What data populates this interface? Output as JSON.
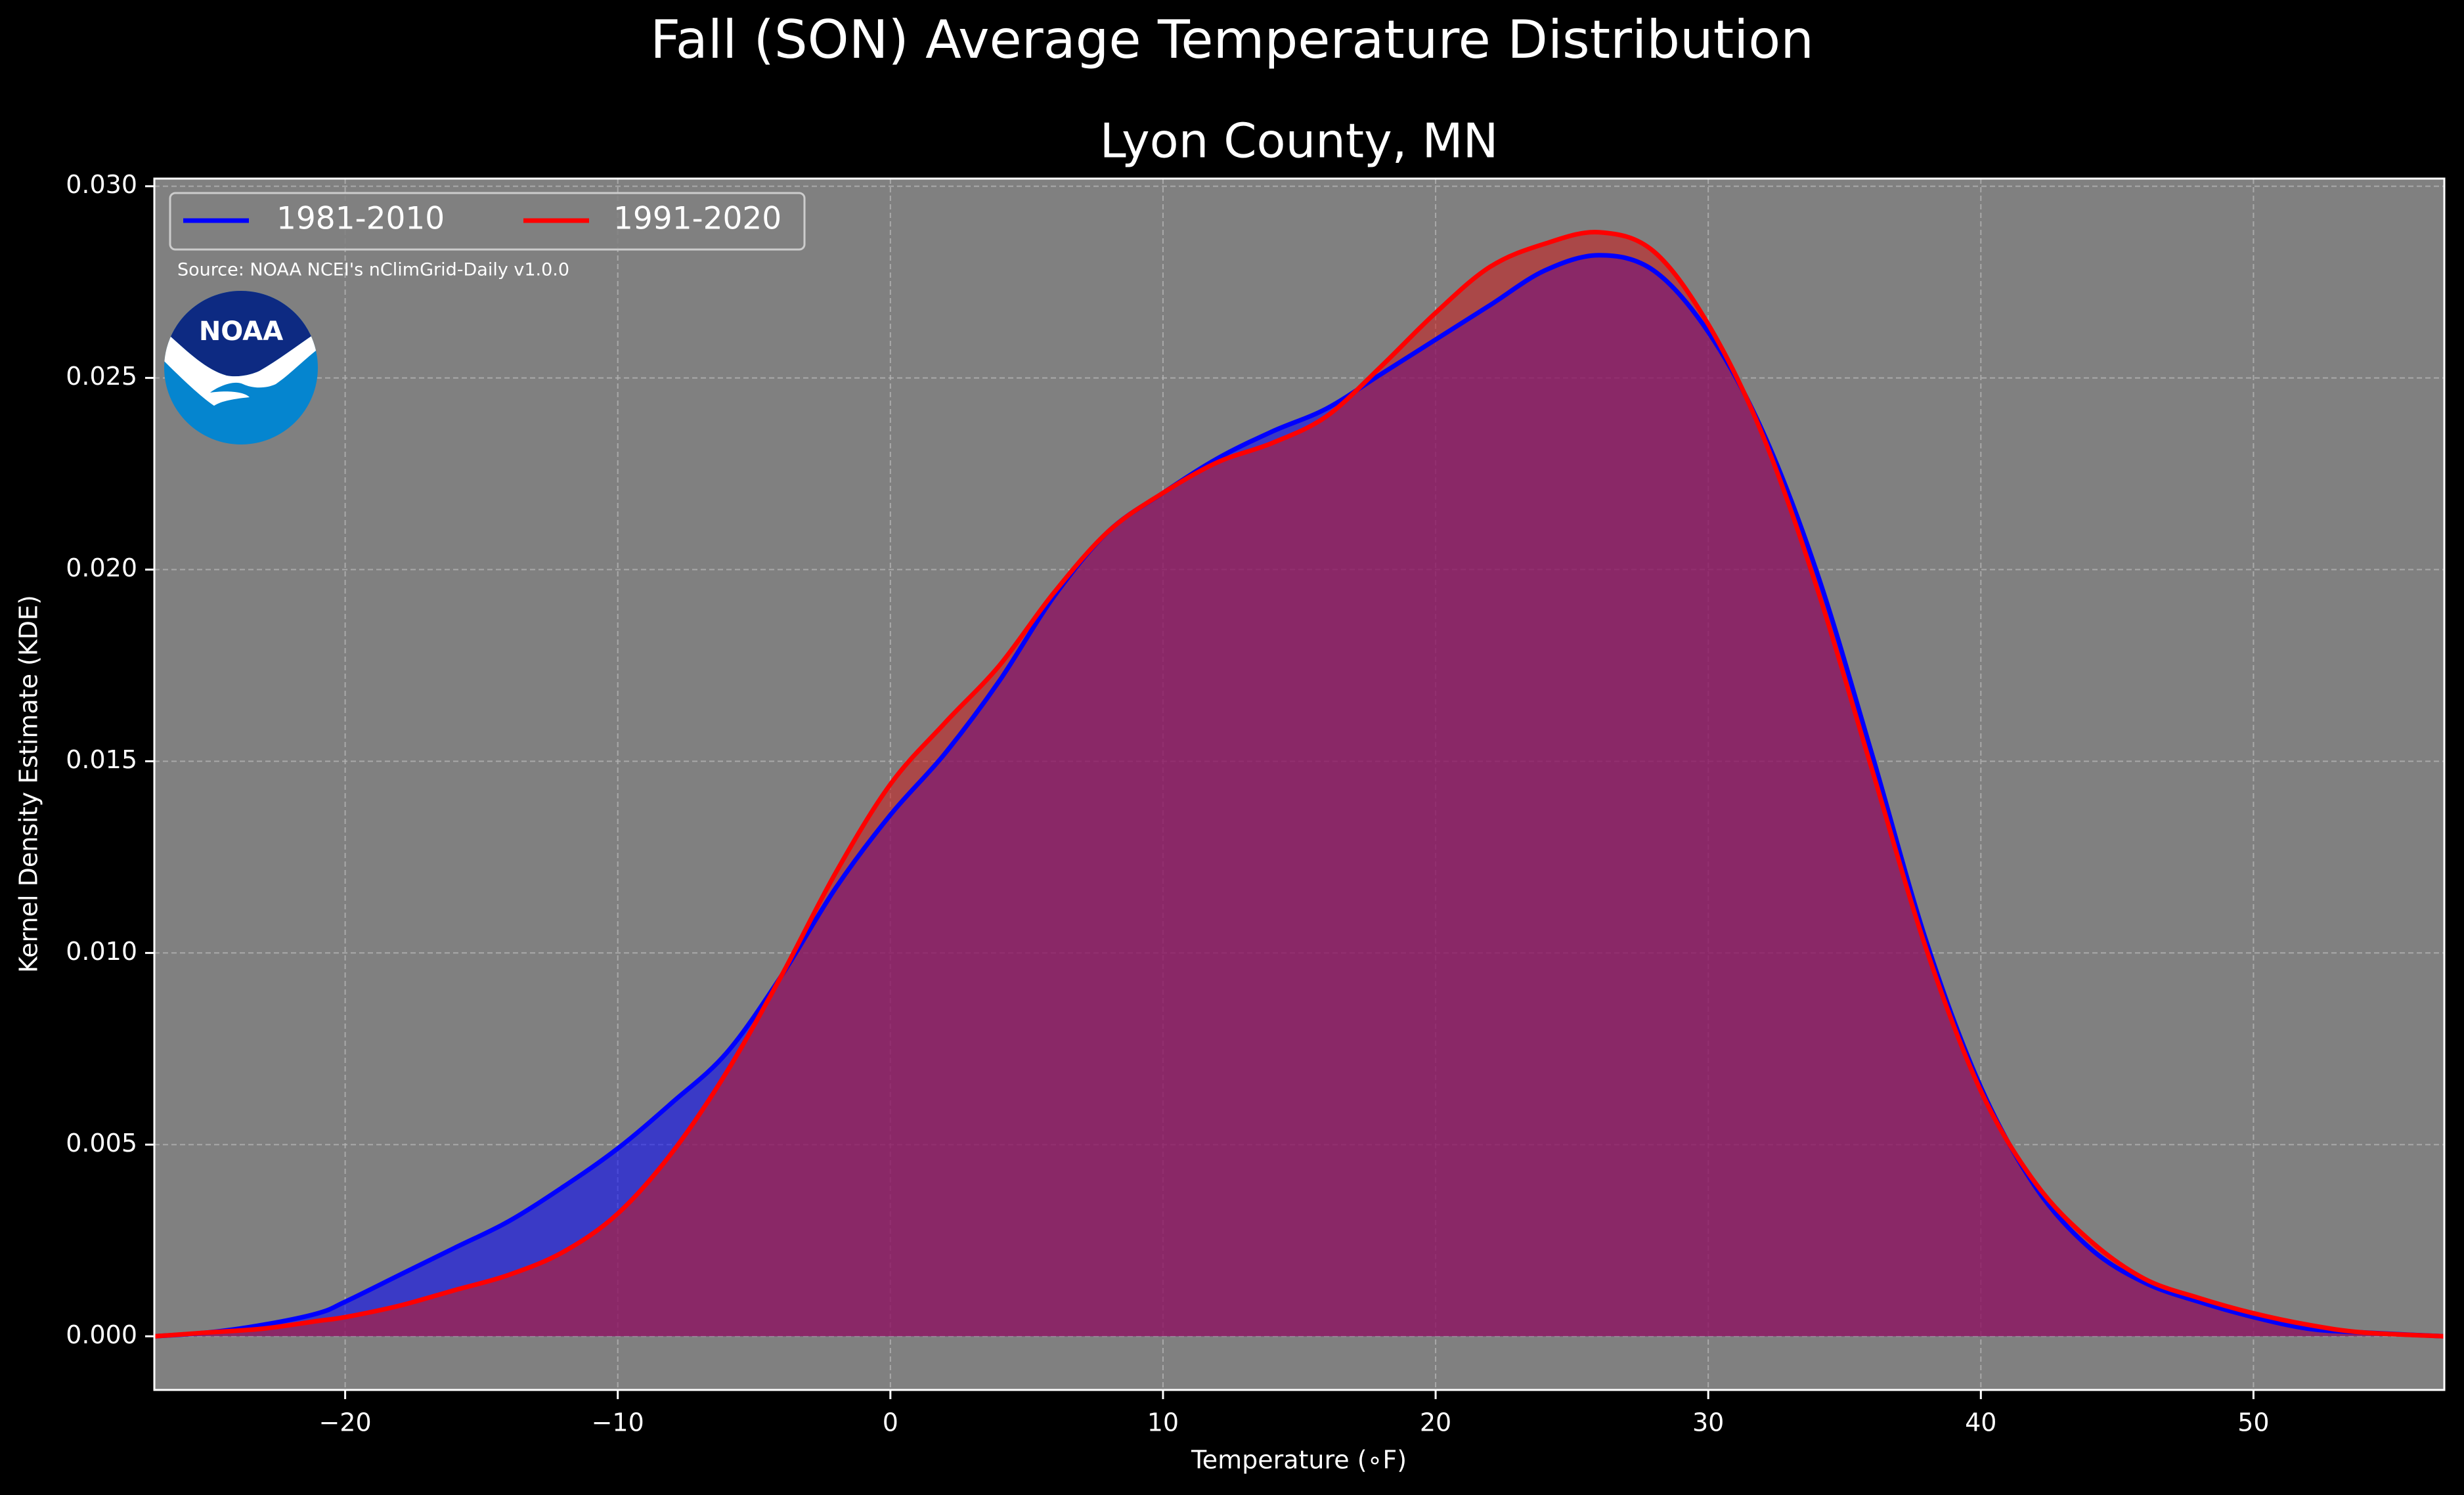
{
  "chart_data": {
    "type": "area",
    "suptitle": "Fall (SON) Average Temperature Distribution",
    "title": "Lyon County, MN",
    "xlabel": "Temperature (∘F)",
    "ylabel": "Kernel Density Estimate (KDE)",
    "xlim": [
      -27,
      57
    ],
    "ylim": [
      -0.0014,
      0.0302
    ],
    "xticks": [
      -20,
      -10,
      0,
      10,
      20,
      30,
      40,
      50
    ],
    "xtick_labels": [
      "−20",
      "−10",
      "0",
      "10",
      "20",
      "30",
      "40",
      "50"
    ],
    "yticks": [
      0,
      0.005,
      0.01,
      0.015,
      0.02,
      0.025,
      0.03
    ],
    "ytick_labels": [
      "0.000",
      "0.005",
      "0.010",
      "0.015",
      "0.020",
      "0.025",
      "0.030"
    ],
    "grid": true,
    "legend_position": "top-left",
    "source": "Source: NOAA NCEI's nClimGrid-Daily v1.0.0",
    "logo_text": "NOAA",
    "series": [
      {
        "name": "1981-2010",
        "color": "#0000ff",
        "fill": "#0000ff",
        "points": [
          [
            -27,
            0.0
          ],
          [
            -25,
            0.0001
          ],
          [
            -23,
            0.0003
          ],
          [
            -21,
            0.0006
          ],
          [
            -20,
            0.0009
          ],
          [
            -18,
            0.0016
          ],
          [
            -16,
            0.0023
          ],
          [
            -14,
            0.003
          ],
          [
            -12,
            0.0039
          ],
          [
            -10,
            0.0049
          ],
          [
            -8,
            0.0061
          ],
          [
            -6,
            0.0074
          ],
          [
            -4,
            0.0094
          ],
          [
            -2,
            0.0117
          ],
          [
            0,
            0.0136
          ],
          [
            2,
            0.0152
          ],
          [
            4,
            0.0171
          ],
          [
            6,
            0.0193
          ],
          [
            8,
            0.021
          ],
          [
            10,
            0.022
          ],
          [
            12,
            0.0229
          ],
          [
            14,
            0.0236
          ],
          [
            16,
            0.0242
          ],
          [
            18,
            0.0251
          ],
          [
            20,
            0.026
          ],
          [
            22,
            0.0269
          ],
          [
            24,
            0.0278
          ],
          [
            26,
            0.0282
          ],
          [
            28,
            0.0278
          ],
          [
            30,
            0.0262
          ],
          [
            32,
            0.0236
          ],
          [
            34,
            0.0199
          ],
          [
            36,
            0.0152
          ],
          [
            38,
            0.0103
          ],
          [
            40,
            0.0065
          ],
          [
            42,
            0.0039
          ],
          [
            44,
            0.0023
          ],
          [
            46,
            0.0014
          ],
          [
            48,
            0.0009
          ],
          [
            50,
            0.0005
          ],
          [
            52,
            0.0002
          ],
          [
            54,
            0.0001
          ],
          [
            57,
            0.0
          ]
        ]
      },
      {
        "name": "1991-2020",
        "color": "#ff0000",
        "fill": "#cc1a1a",
        "points": [
          [
            -27,
            0.0
          ],
          [
            -25,
            0.0001
          ],
          [
            -23,
            0.0002
          ],
          [
            -21,
            0.0004
          ],
          [
            -20,
            0.0005
          ],
          [
            -18,
            0.0008
          ],
          [
            -16,
            0.0012
          ],
          [
            -14,
            0.0016
          ],
          [
            -12,
            0.0022
          ],
          [
            -10,
            0.0032
          ],
          [
            -8,
            0.0048
          ],
          [
            -6,
            0.0069
          ],
          [
            -4,
            0.0094
          ],
          [
            -2,
            0.0121
          ],
          [
            0,
            0.0144
          ],
          [
            2,
            0.016
          ],
          [
            4,
            0.0175
          ],
          [
            6,
            0.0194
          ],
          [
            8,
            0.021
          ],
          [
            10,
            0.022
          ],
          [
            12,
            0.0228
          ],
          [
            14,
            0.0233
          ],
          [
            16,
            0.024
          ],
          [
            18,
            0.0253
          ],
          [
            20,
            0.0267
          ],
          [
            22,
            0.0279
          ],
          [
            24,
            0.0285
          ],
          [
            26,
            0.0288
          ],
          [
            28,
            0.0283
          ],
          [
            30,
            0.0264
          ],
          [
            32,
            0.0235
          ],
          [
            34,
            0.0195
          ],
          [
            36,
            0.0148
          ],
          [
            38,
            0.0101
          ],
          [
            40,
            0.0064
          ],
          [
            42,
            0.004
          ],
          [
            44,
            0.0025
          ],
          [
            46,
            0.0015
          ],
          [
            48,
            0.001
          ],
          [
            50,
            0.0006
          ],
          [
            52,
            0.0003
          ],
          [
            54,
            0.0001
          ],
          [
            57,
            0.0
          ]
        ]
      }
    ]
  }
}
